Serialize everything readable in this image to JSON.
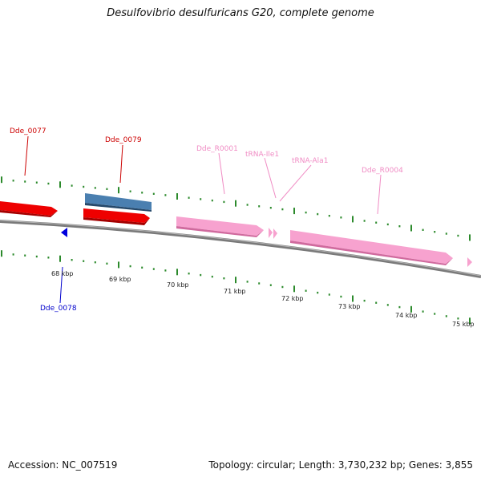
{
  "title": "Desulfovibrio desulfuricans G20, complete genome",
  "accession": "Accession: NC_007519",
  "summary": "Topology: circular; Length: 3,730,232 bp; Genes: 3,855",
  "colors": {
    "cds_red": "#ee0000",
    "cds_blue": "#0000dd",
    "rna_pink": "#f7a2cf",
    "feature_steel": "#4a7fb0",
    "backbone": "#7a7a7a",
    "tick_green": "#2c8a2c"
  },
  "features": [
    {
      "id": "Dde_0077",
      "type": "cds",
      "strand": "+",
      "label_color": "#cc0000"
    },
    {
      "id": "Dde_0078",
      "type": "cds",
      "strand": "-",
      "label_color": "#0000cc"
    },
    {
      "id": "Dde_0079",
      "type": "cds",
      "strand": "+",
      "label_color": "#cc0000"
    },
    {
      "id": "Dde_R0001",
      "type": "rrna",
      "strand": "+",
      "label_color": "#f08cc4"
    },
    {
      "id": "tRNA-Ile1",
      "type": "trna",
      "strand": "+",
      "label_color": "#f08cc4"
    },
    {
      "id": "tRNA-Ala1",
      "type": "trna",
      "strand": "+",
      "label_color": "#f08cc4"
    },
    {
      "id": "Dde_R0004",
      "type": "rrna",
      "strand": "+",
      "label_color": "#f08cc4"
    }
  ],
  "scale_labels": [
    "68 kbp",
    "69 kbp",
    "70 kbp",
    "71 kbp",
    "72 kbp",
    "73 kbp",
    "74 kbp",
    "75 kbp"
  ]
}
